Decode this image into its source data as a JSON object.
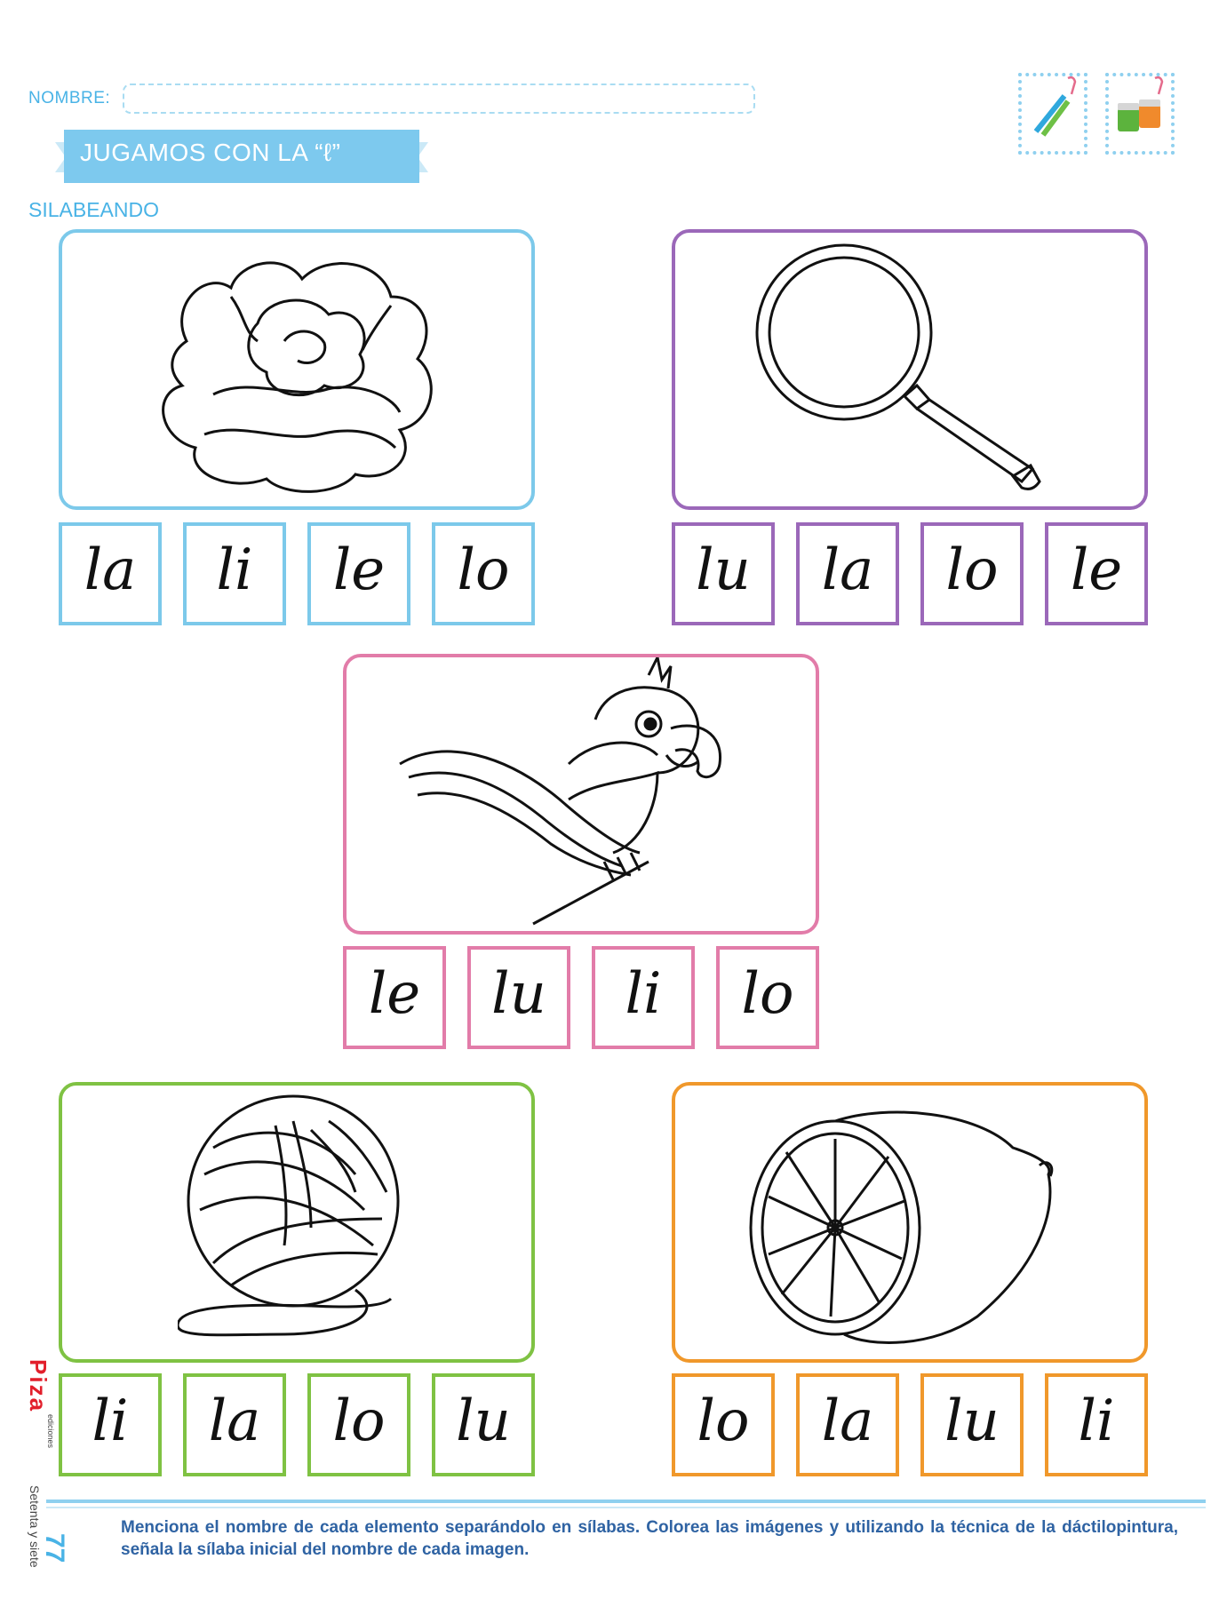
{
  "header": {
    "name_label": "NOMBRE:",
    "banner_title": "JUGAMOS CON LA “ℓ”",
    "section_title": "SILABEANDO",
    "icons": [
      "colored-pencils-icon",
      "paint-jars-icon"
    ]
  },
  "exercises": [
    {
      "image": "lettuce-icon",
      "color": "#7cc9ea",
      "syllables": [
        "la",
        "li",
        "le",
        "lo"
      ]
    },
    {
      "image": "magnifying-glass-icon",
      "color": "#9b68b9",
      "syllables": [
        "lu",
        "la",
        "lo",
        "le"
      ]
    },
    {
      "image": "parrot-icon",
      "color": "#e27ca9",
      "syllables": [
        "le",
        "lu",
        "li",
        "lo"
      ]
    },
    {
      "image": "yarn-ball-icon",
      "color": "#7fc243",
      "syllables": [
        "li",
        "la",
        "lo",
        "lu"
      ]
    },
    {
      "image": "lemon-half-icon",
      "color": "#f0982b",
      "syllables": [
        "lo",
        "la",
        "lu",
        "li"
      ]
    }
  ],
  "footer": {
    "page_number": "77",
    "page_words": "Setenta y siete",
    "publisher": "Piza",
    "publisher_sub": "ediciones",
    "instructions": "Menciona el nombre de cada elemento separándolo en sílabas. Colorea las imágenes y utilizando la técnica de la dáctilopintura, señala la sílaba inicial del nombre de cada imagen."
  }
}
